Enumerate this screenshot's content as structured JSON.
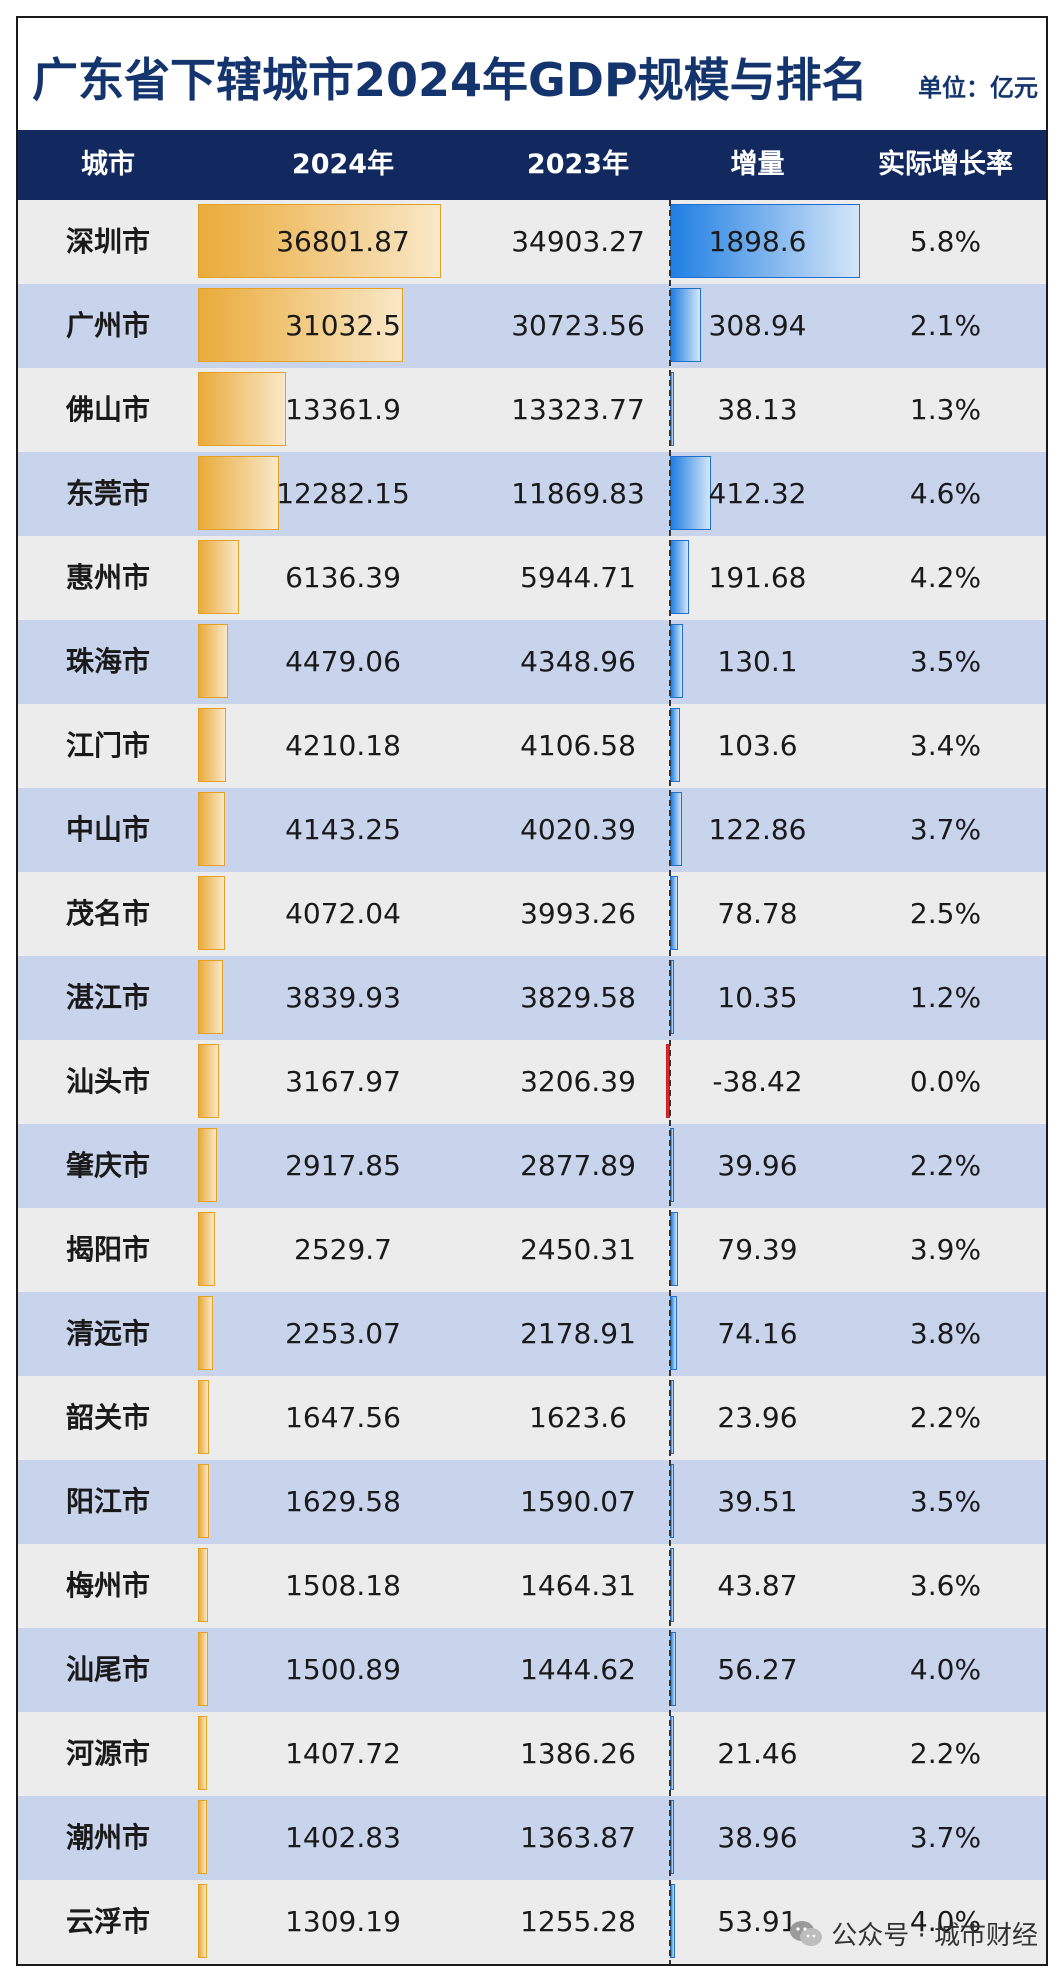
{
  "title": "广东省下辖城市2024年GDP规模与排名",
  "unit": "单位：亿元",
  "watermark": "公众号 · 城市财经",
  "colors": {
    "header_bg": "#11295f",
    "title": "#14346e",
    "bar_2024": "#eaab3a",
    "bar_increase": "#1f7fe3",
    "bar_negative": "#d92a2a",
    "row_odd": "#ececec",
    "row_even": "#c8d3ec"
  },
  "chart_data": {
    "type": "table",
    "title": "广东省下辖城市2024年GDP规模与排名",
    "unit": "单位：亿元",
    "columns": [
      "城市",
      "2024年",
      "2023年",
      "增量",
      "实际增长率"
    ],
    "rows": [
      {
        "city": "深圳市",
        "gdp2024": 36801.87,
        "gdp2023": 34903.27,
        "increase": 1898.6,
        "growth": "5.8%"
      },
      {
        "city": "广州市",
        "gdp2024": 31032.5,
        "gdp2023": 30723.56,
        "increase": 308.94,
        "growth": "2.1%"
      },
      {
        "city": "佛山市",
        "gdp2024": 13361.9,
        "gdp2023": 13323.77,
        "increase": 38.13,
        "growth": "1.3%"
      },
      {
        "city": "东莞市",
        "gdp2024": 12282.15,
        "gdp2023": 11869.83,
        "increase": 412.32,
        "growth": "4.6%"
      },
      {
        "city": "惠州市",
        "gdp2024": 6136.39,
        "gdp2023": 5944.71,
        "increase": 191.68,
        "growth": "4.2%"
      },
      {
        "city": "珠海市",
        "gdp2024": 4479.06,
        "gdp2023": 4348.96,
        "increase": 130.1,
        "growth": "3.5%"
      },
      {
        "city": "江门市",
        "gdp2024": 4210.18,
        "gdp2023": 4106.58,
        "increase": 103.6,
        "growth": "3.4%"
      },
      {
        "city": "中山市",
        "gdp2024": 4143.25,
        "gdp2023": 4020.39,
        "increase": 122.86,
        "growth": "3.7%"
      },
      {
        "city": "茂名市",
        "gdp2024": 4072.04,
        "gdp2023": 3993.26,
        "increase": 78.78,
        "growth": "2.5%"
      },
      {
        "city": "湛江市",
        "gdp2024": 3839.93,
        "gdp2023": 3829.58,
        "increase": 10.35,
        "growth": "1.2%"
      },
      {
        "city": "汕头市",
        "gdp2024": 3167.97,
        "gdp2023": 3206.39,
        "increase": -38.42,
        "growth": "0.0%"
      },
      {
        "city": "肇庆市",
        "gdp2024": 2917.85,
        "gdp2023": 2877.89,
        "increase": 39.96,
        "growth": "2.2%"
      },
      {
        "city": "揭阳市",
        "gdp2024": 2529.7,
        "gdp2023": 2450.31,
        "increase": 79.39,
        "growth": "3.9%"
      },
      {
        "city": "清远市",
        "gdp2024": 2253.07,
        "gdp2023": 2178.91,
        "increase": 74.16,
        "growth": "3.8%"
      },
      {
        "city": "韶关市",
        "gdp2024": 1647.56,
        "gdp2023": 1623.6,
        "increase": 23.96,
        "growth": "2.2%"
      },
      {
        "city": "阳江市",
        "gdp2024": 1629.58,
        "gdp2023": 1590.07,
        "increase": 39.51,
        "growth": "3.5%"
      },
      {
        "city": "梅州市",
        "gdp2024": 1508.18,
        "gdp2023": 1464.31,
        "increase": 43.87,
        "growth": "3.6%"
      },
      {
        "city": "汕尾市",
        "gdp2024": 1500.89,
        "gdp2023": 1444.62,
        "increase": 56.27,
        "growth": "4.0%"
      },
      {
        "city": "河源市",
        "gdp2024": 1407.72,
        "gdp2023": 1386.26,
        "increase": 21.46,
        "growth": "2.2%"
      },
      {
        "city": "潮州市",
        "gdp2024": 1402.83,
        "gdp2023": 1363.87,
        "increase": 38.96,
        "growth": "3.7%"
      },
      {
        "city": "云浮市",
        "gdp2024": 1309.19,
        "gdp2023": 1255.28,
        "increase": 53.91,
        "growth": "4.0%"
      }
    ]
  }
}
